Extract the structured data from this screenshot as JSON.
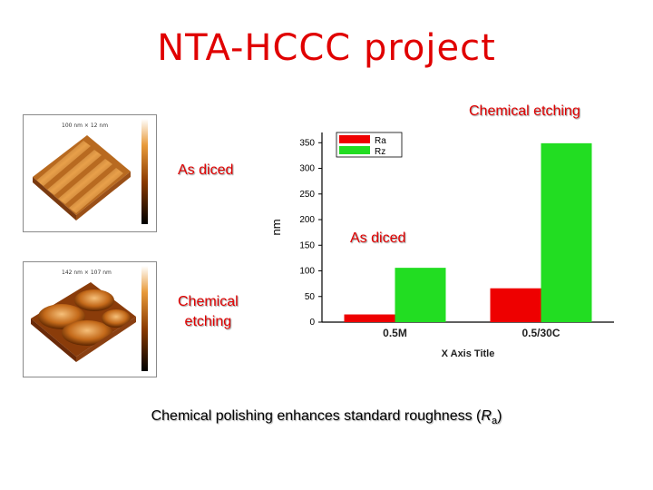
{
  "title": "NTA-HCCC project",
  "labels": {
    "chemical_etching_top": "Chemical etching",
    "as_diced_left": "As diced",
    "as_diced_mid": "As diced",
    "chemical_etching_left_1": "Chemical",
    "chemical_etching_left_2": "etching"
  },
  "afm": {
    "top_caption": "100 nm × 12 nm",
    "bottom_caption": "142 nm × 107 nm"
  },
  "caption": {
    "text": "Chemical polishing enhances standard roughness (",
    "symbol": "R",
    "subscript": "a",
    "end": ")"
  },
  "colors": {
    "accent": "#e00000",
    "ra": "#ee0000",
    "rz": "#22dd22"
  },
  "chart_data": {
    "type": "bar",
    "categories": [
      "0.5M",
      "0.5/30C"
    ],
    "series": [
      {
        "name": "Ra",
        "values": [
          15,
          66
        ],
        "color": "#ee0000"
      },
      {
        "name": "Rz",
        "values": [
          106,
          349
        ],
        "color": "#22dd22"
      }
    ],
    "ylabel": "nm",
    "xlabel": "X Axis Title",
    "ylim": [
      0,
      370
    ],
    "yticks": [
      0,
      50,
      100,
      150,
      200,
      250,
      300,
      350
    ],
    "legend": "top-left",
    "grid": false
  }
}
